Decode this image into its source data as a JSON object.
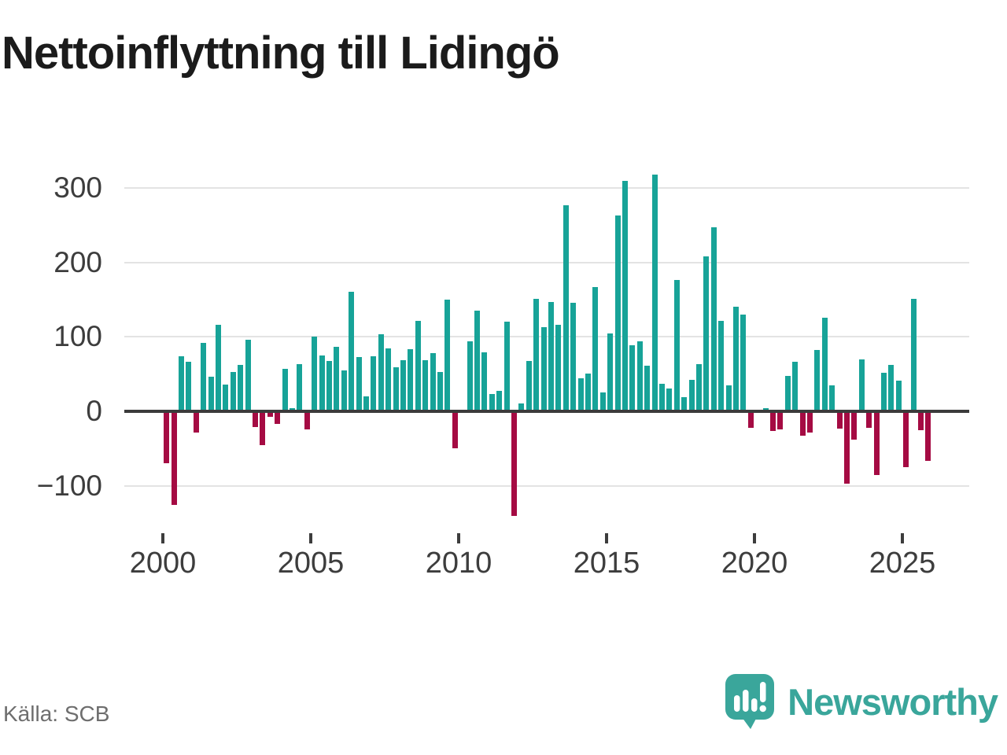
{
  "chart_data": {
    "type": "bar",
    "title": "Nettoinflyttning till Lidingö",
    "frequency": "quarterly",
    "x_start": "2000 Q1",
    "x_end": "2025 Q4",
    "series_by_year": [
      {
        "year": 2000,
        "q": [
          -70,
          -126,
          74,
          67
        ]
      },
      {
        "year": 2001,
        "q": [
          -28,
          92,
          46,
          116
        ]
      },
      {
        "year": 2002,
        "q": [
          36,
          53,
          62,
          96
        ]
      },
      {
        "year": 2003,
        "q": [
          -21,
          -45,
          -7,
          -17
        ]
      },
      {
        "year": 2004,
        "q": [
          57,
          4,
          63,
          -24
        ]
      },
      {
        "year": 2005,
        "q": [
          100,
          75,
          68,
          87
        ]
      },
      {
        "year": 2006,
        "q": [
          55,
          161,
          73,
          20
        ]
      },
      {
        "year": 2007,
        "q": [
          74,
          104,
          85,
          59
        ]
      },
      {
        "year": 2008,
        "q": [
          69,
          83,
          122,
          69
        ]
      },
      {
        "year": 2009,
        "q": [
          78,
          53,
          150,
          -50
        ]
      },
      {
        "year": 2010,
        "q": [
          1,
          94,
          135,
          79
        ]
      },
      {
        "year": 2011,
        "q": [
          23,
          27,
          120,
          -141
        ]
      },
      {
        "year": 2012,
        "q": [
          11,
          68,
          151,
          113
        ]
      },
      {
        "year": 2013,
        "q": [
          147,
          116,
          277,
          146
        ]
      },
      {
        "year": 2014,
        "q": [
          44,
          51,
          167,
          25
        ]
      },
      {
        "year": 2015,
        "q": [
          105,
          263,
          310,
          89
        ]
      },
      {
        "year": 2016,
        "q": [
          94,
          61,
          318,
          37
        ]
      },
      {
        "year": 2017,
        "q": [
          31,
          176,
          19,
          42
        ]
      },
      {
        "year": 2018,
        "q": [
          63,
          208,
          247,
          122
        ]
      },
      {
        "year": 2019,
        "q": [
          35,
          140,
          130,
          -22
        ]
      },
      {
        "year": 2020,
        "q": [
          1,
          4,
          -26,
          -24
        ]
      },
      {
        "year": 2021,
        "q": [
          48,
          67,
          -33,
          -28
        ]
      },
      {
        "year": 2022,
        "q": [
          82,
          126,
          35,
          -23
        ]
      },
      {
        "year": 2023,
        "q": [
          -97,
          -38,
          70,
          -22
        ]
      },
      {
        "year": 2024,
        "q": [
          -86,
          52,
          62,
          41
        ]
      },
      {
        "year": 2025,
        "q": [
          -75,
          151,
          -25,
          -67
        ]
      }
    ],
    "yticks": [
      {
        "value": 300,
        "label": "300"
      },
      {
        "value": 200,
        "label": "200"
      },
      {
        "value": 100,
        "label": "100"
      },
      {
        "value": 0,
        "label": "0"
      },
      {
        "value": -100,
        "label": "−100"
      }
    ],
    "xticks": [
      {
        "year": 2000,
        "label": "2000"
      },
      {
        "year": 2005,
        "label": "2005"
      },
      {
        "year": 2010,
        "label": "2010"
      },
      {
        "year": 2015,
        "label": "2015"
      },
      {
        "year": 2020,
        "label": "2020"
      },
      {
        "year": 2025,
        "label": "2025"
      }
    ],
    "ylim": [
      -150,
      330
    ],
    "grid": "horizontal",
    "legend": "none",
    "positive_color": "#17a398",
    "negative_color": "#a50b43"
  },
  "source": {
    "label": "Källa: SCB"
  },
  "branding": {
    "wordmark": "Newsworthy",
    "logo_color": "#3aa69b"
  }
}
